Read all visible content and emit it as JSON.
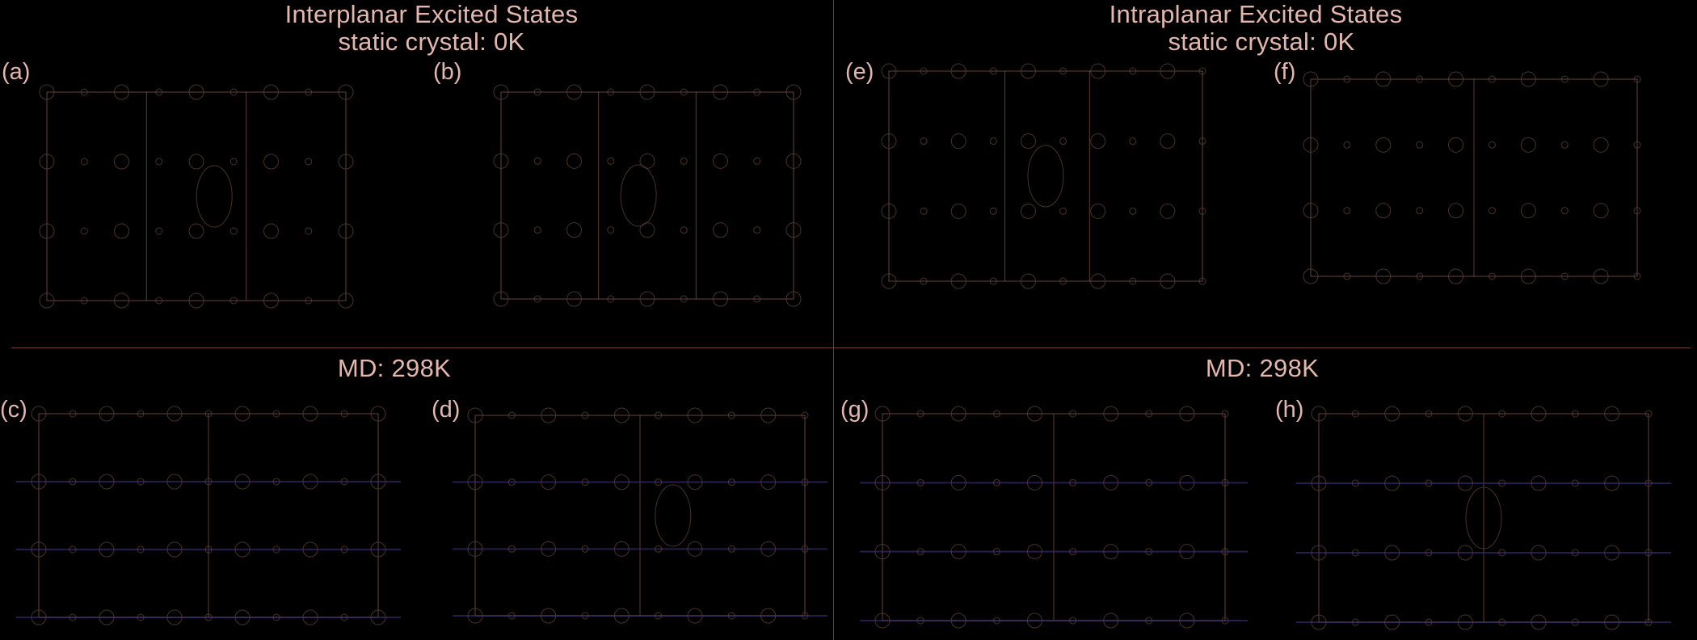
{
  "sections": {
    "interplanar_title": "Interplanar Excited States",
    "intraplanar_title": "Intraplanar Excited States",
    "static_left": "static crystal: 0K",
    "static_right": "static crystal: 0K",
    "md_left": "MD: 298K",
    "md_right": "MD: 298K"
  },
  "panels": {
    "a": "(a)",
    "b": "(b)",
    "c": "(c)",
    "d": "(d)",
    "e": "(e)",
    "f": "(f)",
    "g": "(g)",
    "h": "(h)"
  },
  "colors": {
    "background": "#000000",
    "text": "#e3b7ad",
    "frame": "#b77a6c",
    "divider": "#6a3f3a",
    "atom": "#5a3e36",
    "disorder": "#3a2a6a"
  }
}
